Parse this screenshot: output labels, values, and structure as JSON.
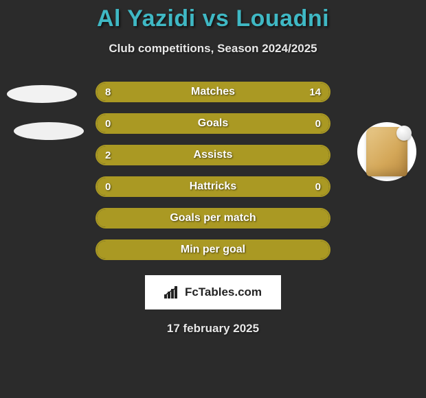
{
  "title": "Al Yazidi vs Louadni",
  "title_color": "#3fb8c4",
  "subtitle": "Club competitions, Season 2024/2025",
  "background_color": "#2b2b2b",
  "bar_border_color": "#aa9923",
  "bar_fill_color": "#aa9923",
  "stats": [
    {
      "label": "Matches",
      "left_value": "8",
      "right_value": "14",
      "left_pct": 36.4,
      "right_pct": 63.6,
      "show_values": true,
      "has_split": true
    },
    {
      "label": "Goals",
      "left_value": "0",
      "right_value": "0",
      "left_pct": 0,
      "right_pct": 0,
      "show_values": true,
      "has_split": false,
      "full_fill": true
    },
    {
      "label": "Assists",
      "left_value": "2",
      "right_value": "",
      "left_pct": 100,
      "right_pct": 0,
      "show_values": true,
      "show_right_value": false,
      "has_split": false,
      "full_fill": true
    },
    {
      "label": "Hattricks",
      "left_value": "0",
      "right_value": "0",
      "left_pct": 0,
      "right_pct": 0,
      "show_values": true,
      "has_split": false,
      "full_fill": true
    },
    {
      "label": "Goals per match",
      "left_value": "",
      "right_value": "",
      "left_pct": 0,
      "right_pct": 0,
      "show_values": false,
      "has_split": false,
      "full_fill": true
    },
    {
      "label": "Min per goal",
      "left_value": "",
      "right_value": "",
      "left_pct": 0,
      "right_pct": 0,
      "show_values": false,
      "has_split": false,
      "full_fill": true
    }
  ],
  "brand": "FcTables.com",
  "date": "17 february 2025"
}
